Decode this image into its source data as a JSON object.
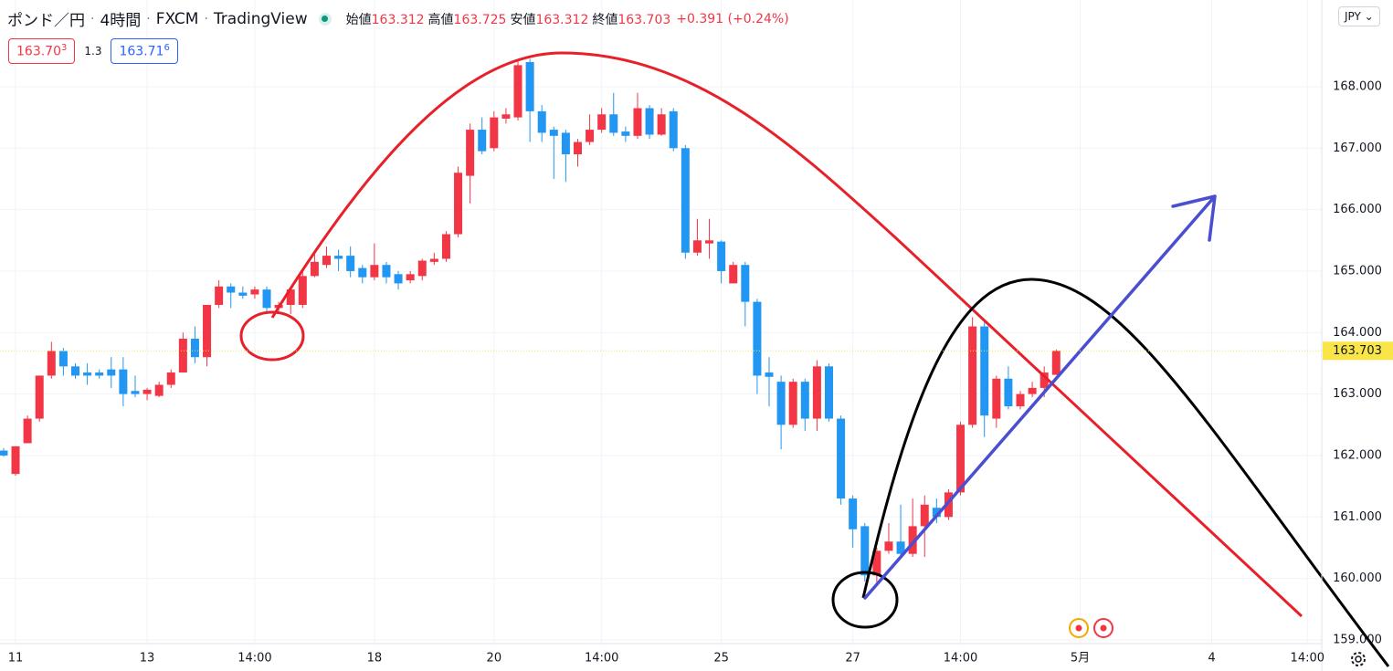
{
  "header": {
    "pair": "ポンド／円",
    "interval": "4時間",
    "source": "FXCM",
    "platform": "TradingView",
    "ohlc": [
      {
        "label": "始値",
        "value": "163.312"
      },
      {
        "label": "高値",
        "value": "163.725"
      },
      {
        "label": "安値",
        "value": "163.312"
      },
      {
        "label": "終値",
        "value": "163.703"
      }
    ],
    "change": "+0.391 (+0.24%)",
    "sell": {
      "price": "163.70",
      "pip": "3"
    },
    "spread": "1.3",
    "buy": {
      "price": "163.71",
      "pip": "6"
    },
    "currency": "JPY"
  },
  "chart_data": {
    "type": "candlestick",
    "up_color": "#f23645",
    "down_color": "#2196f3",
    "open": [
      162.08,
      161.7,
      162.2,
      162.6,
      163.3,
      163.7,
      163.45,
      163.35,
      163.35,
      163.4,
      163.4,
      163.05,
      163.0,
      162.97,
      163.15,
      163.35,
      163.9,
      163.6,
      164.45,
      164.75,
      164.65,
      164.62,
      164.7,
      164.4,
      164.45,
      164.45,
      164.92,
      165.1,
      165.25,
      165.25,
      165.05,
      164.9,
      165.1,
      164.95,
      164.85,
      164.92,
      165.15,
      165.2,
      165.6,
      166.55,
      167.3,
      167.0,
      167.48,
      167.5,
      168.4,
      167.6,
      167.3,
      167.25,
      166.9,
      167.1,
      167.3,
      167.55,
      167.27,
      167.2,
      167.65,
      167.22,
      167.6,
      167.0,
      165.3,
      165.45,
      165.48,
      164.8,
      165.1,
      164.5,
      163.35,
      163.2,
      162.5,
      163.2,
      162.6,
      163.45,
      162.6,
      161.3,
      160.85,
      160.05,
      160.45,
      160.6,
      160.4,
      160.85,
      161.15,
      161.0,
      161.4,
      162.5,
      164.1,
      162.6,
      163.25,
      162.8,
      163.0,
      163.1,
      163.312
    ],
    "high": [
      162.12,
      162.15,
      162.65,
      163.3,
      163.85,
      163.75,
      163.5,
      163.5,
      163.4,
      163.6,
      163.6,
      163.3,
      163.1,
      163.2,
      163.4,
      164.0,
      164.1,
      164.45,
      164.85,
      164.8,
      164.75,
      164.75,
      164.75,
      164.5,
      164.75,
      165.0,
      165.3,
      165.4,
      165.35,
      165.4,
      165.1,
      165.45,
      165.15,
      165.0,
      165.0,
      165.2,
      165.3,
      165.65,
      166.7,
      167.4,
      167.5,
      167.6,
      167.65,
      168.45,
      168.45,
      167.7,
      167.35,
      167.3,
      167.15,
      167.55,
      167.65,
      167.9,
      167.35,
      167.9,
      167.7,
      167.65,
      167.65,
      167.05,
      165.85,
      165.85,
      165.5,
      165.15,
      165.15,
      164.55,
      163.6,
      163.3,
      163.25,
      163.25,
      163.55,
      163.5,
      162.65,
      161.35,
      160.9,
      160.5,
      160.9,
      161.2,
      161.3,
      161.35,
      161.3,
      161.45,
      162.55,
      164.25,
      164.2,
      163.3,
      163.45,
      163.05,
      163.2,
      163.45,
      163.725
    ],
    "low": [
      161.98,
      161.67,
      162.2,
      162.55,
      163.25,
      163.3,
      163.25,
      163.15,
      163.25,
      163.1,
      162.8,
      162.95,
      162.9,
      162.95,
      163.1,
      163.35,
      163.5,
      163.45,
      164.4,
      164.4,
      164.55,
      164.55,
      164.3,
      164.35,
      164.3,
      164.4,
      164.9,
      165.05,
      165.0,
      164.9,
      164.8,
      164.85,
      164.8,
      164.7,
      164.8,
      164.85,
      165.1,
      165.15,
      165.55,
      166.1,
      166.9,
      166.95,
      167.4,
      167.45,
      167.1,
      167.1,
      166.5,
      166.45,
      166.7,
      167.05,
      167.25,
      167.2,
      167.1,
      167.15,
      167.15,
      167.2,
      166.95,
      165.2,
      165.25,
      165.2,
      164.8,
      164.8,
      164.1,
      163.0,
      162.8,
      162.1,
      162.45,
      162.4,
      162.4,
      162.55,
      161.2,
      160.5,
      159.95,
      159.9,
      160.4,
      160.35,
      160.35,
      160.35,
      160.9,
      160.95,
      161.35,
      162.45,
      162.3,
      162.45,
      162.75,
      162.75,
      162.95,
      162.95,
      163.312
    ],
    "close": [
      162.0,
      162.15,
      162.6,
      163.3,
      163.7,
      163.45,
      163.3,
      163.3,
      163.3,
      163.3,
      163.0,
      163.0,
      163.07,
      163.15,
      163.35,
      163.9,
      163.6,
      164.45,
      164.75,
      164.65,
      164.6,
      164.7,
      164.4,
      164.45,
      164.7,
      164.92,
      165.15,
      165.25,
      165.2,
      165.0,
      164.9,
      165.1,
      164.9,
      164.8,
      164.95,
      165.17,
      165.2,
      165.6,
      166.6,
      167.3,
      166.95,
      167.5,
      167.55,
      168.35,
      167.6,
      167.25,
      167.2,
      166.9,
      167.1,
      167.3,
      167.55,
      167.25,
      167.2,
      167.65,
      167.22,
      167.55,
      167.0,
      165.3,
      165.5,
      165.5,
      165.0,
      165.1,
      164.5,
      163.3,
      163.28,
      162.5,
      163.2,
      162.6,
      163.45,
      162.6,
      161.3,
      160.8,
      160.05,
      160.45,
      160.6,
      160.4,
      160.85,
      161.2,
      161.0,
      161.4,
      162.5,
      164.1,
      162.65,
      163.25,
      162.8,
      163.0,
      163.1,
      163.35,
      163.703
    ],
    "ylim": [
      158.94,
      169.41
    ],
    "yticks": [
      {
        "value": 159,
        "label": "159.000"
      },
      {
        "value": 160,
        "label": "160.000"
      },
      {
        "value": 161,
        "label": "161.000"
      },
      {
        "value": 162,
        "label": "162.000"
      },
      {
        "value": 163,
        "label": "163.000"
      },
      {
        "value": 164,
        "label": "164.000"
      },
      {
        "value": 165,
        "label": "165.000"
      },
      {
        "value": 166,
        "label": "166.000"
      },
      {
        "value": 167,
        "label": "167.000"
      },
      {
        "value": 168,
        "label": "168.000"
      }
    ],
    "xlim": [
      -0.3,
      110.2
    ],
    "xticks": [
      {
        "value": 1,
        "label": "11"
      },
      {
        "value": 12,
        "label": "13"
      },
      {
        "value": 21,
        "label": "14:00"
      },
      {
        "value": 31,
        "label": "18"
      },
      {
        "value": 41,
        "label": "20"
      },
      {
        "value": 50,
        "label": "14:00"
      },
      {
        "value": 60,
        "label": "25"
      },
      {
        "value": 71,
        "label": "27"
      },
      {
        "value": 80,
        "label": "14:00"
      },
      {
        "value": 90,
        "label": "5月"
      },
      {
        "value": 101,
        "label": "4"
      },
      {
        "value": 109,
        "label": "14:00"
      }
    ],
    "last_price": 163.703,
    "last_price_color": "#f9e547",
    "grid": true
  }
}
